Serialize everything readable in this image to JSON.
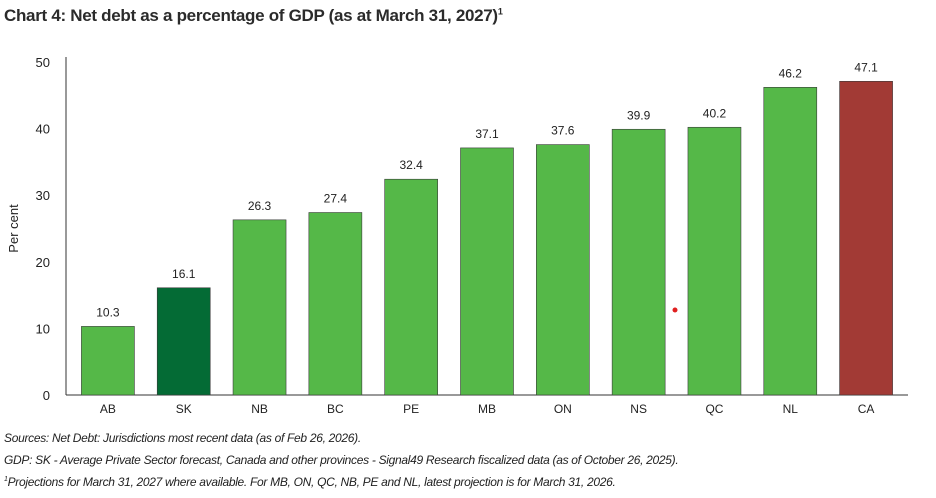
{
  "chart_data": {
    "type": "bar",
    "title": "Chart 4: Net debt as a percentage of GDP (as at March 31, 2027)",
    "title_sup": "1",
    "xlabel": "",
    "ylabel": "Per cent",
    "ylim": [
      0,
      50
    ],
    "yticks": [
      0,
      10,
      20,
      30,
      40,
      50
    ],
    "grid": false,
    "categories": [
      "AB",
      "SK",
      "NB",
      "BC",
      "PE",
      "MB",
      "ON",
      "NS",
      "QC",
      "NL",
      "CA"
    ],
    "values": [
      10.3,
      16.1,
      26.3,
      27.4,
      32.4,
      37.1,
      37.6,
      39.9,
      40.2,
      46.2,
      47.1
    ],
    "value_labels": [
      "10.3",
      "16.1",
      "26.3",
      "27.4",
      "32.4",
      "37.1",
      "37.6",
      "39.9",
      "40.2",
      "46.2",
      "47.1"
    ],
    "colors": [
      "#55b848",
      "#046b35",
      "#55b848",
      "#55b848",
      "#55b848",
      "#55b848",
      "#55b848",
      "#55b848",
      "#55b848",
      "#55b848",
      "#a23a35"
    ]
  },
  "notes": [
    "Sources: Net Debt: Jurisdictions most recent data (as of Feb 26, 2026).",
    "GDP: SK - Average Private Sector forecast, Canada and other provinces - Signal49 Research fiscalized data (as of October 26, 2025).",
    "Projections for March 31, 2027 where available. For MB, ON, QC, NB, PE and NL, latest projection is for March 31, 2026."
  ],
  "notes_sup": "1"
}
